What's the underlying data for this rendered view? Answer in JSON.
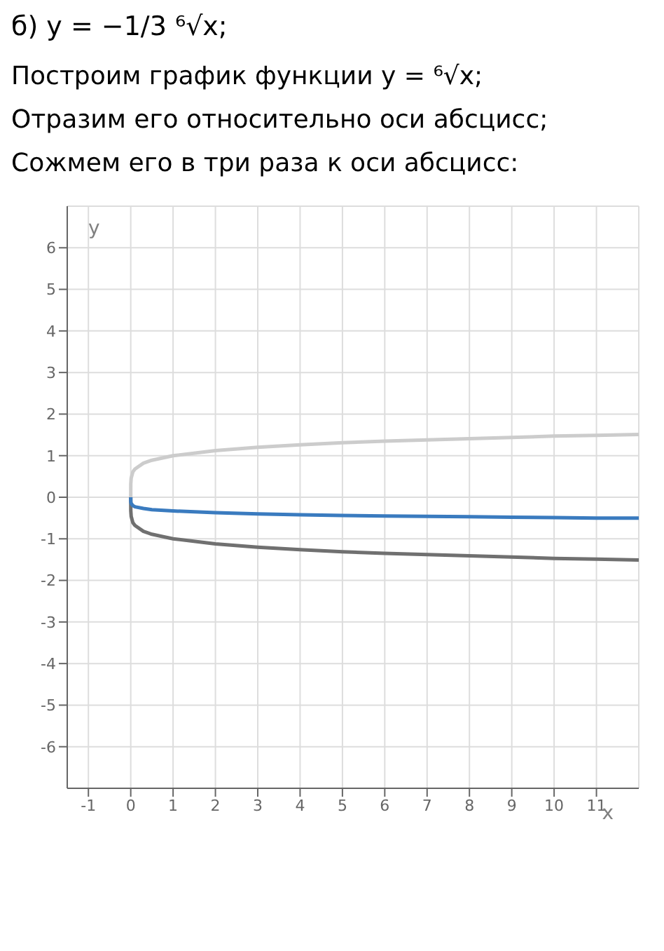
{
  "chart_data": {
    "type": "line",
    "title": "б) y = −1/3 ⁶√x;",
    "annotations": [
      "Построим график функции y = ⁶√x;",
      "Отразим его относительно оси абсцисс;",
      "Сожмем его в три раза к оси абсцисс:"
    ],
    "xlabel": "x",
    "ylabel": "y",
    "x": [
      0,
      0.001,
      0.01,
      0.05,
      0.1,
      0.3,
      0.5,
      1,
      2,
      3,
      4,
      5,
      6,
      7,
      8,
      9,
      10,
      11,
      12
    ],
    "series": [
      {
        "color": "#cccccc",
        "values": [
          0,
          0.32,
          0.46,
          0.61,
          0.68,
          0.82,
          0.89,
          1,
          1.12,
          1.2,
          1.26,
          1.31,
          1.35,
          1.38,
          1.41,
          1.44,
          1.47,
          1.49,
          1.51
        ]
      },
      {
        "color": "#707070",
        "values": [
          0,
          -0.32,
          -0.46,
          -0.61,
          -0.68,
          -0.82,
          -0.89,
          -1,
          -1.12,
          -1.2,
          -1.26,
          -1.31,
          -1.35,
          -1.38,
          -1.41,
          -1.44,
          -1.47,
          -1.49,
          -1.51
        ]
      },
      {
        "color": "#3a7bbf",
        "values": [
          0,
          -0.11,
          -0.15,
          -0.2,
          -0.23,
          -0.27,
          -0.3,
          -0.33,
          -0.37,
          -0.4,
          -0.42,
          -0.44,
          -0.45,
          -0.46,
          -0.47,
          -0.48,
          -0.49,
          -0.5,
          -0.5
        ]
      }
    ],
    "xlim": [
      -1.5,
      12
    ],
    "ylim": [
      -7,
      7
    ],
    "xticks": [
      -1,
      0,
      1,
      2,
      3,
      4,
      5,
      6,
      7,
      8,
      9,
      10,
      11
    ],
    "yticks": [
      -6,
      -5,
      -4,
      -3,
      -2,
      -1,
      0,
      1,
      2,
      3,
      4,
      5,
      6
    ],
    "grid": true,
    "legend": false,
    "marker": "none",
    "line_style": "solid"
  }
}
